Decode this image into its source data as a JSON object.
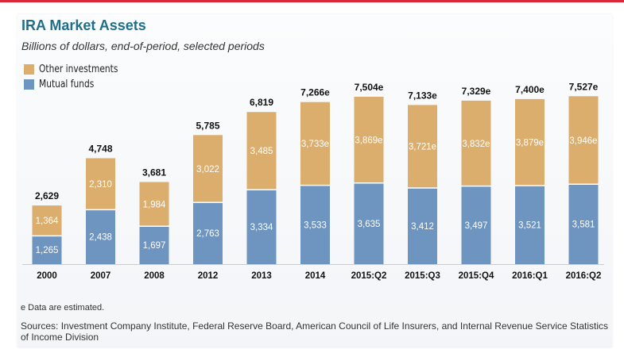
{
  "title": "IRA Market Assets",
  "subtitle": "Billions of dollars, end-of-period, selected periods",
  "legend": [
    {
      "label": "Other investments",
      "color": "#dcae6e"
    },
    {
      "label": "Mutual funds",
      "color": "#6e94c0"
    }
  ],
  "colors": {
    "accent": "#1f6f8b",
    "topbar": "#d8283a"
  },
  "footnote": "e Data are estimated.",
  "sources": "Sources: Investment Company Institute, Federal Reserve Board, American Council of Life Insurers, and Internal Revenue Service Statistics of Income Division",
  "chart_data": {
    "type": "bar",
    "stacked": true,
    "title": "IRA Market Assets",
    "subtitle": "Billions of dollars, end-of-period, selected periods",
    "categories": [
      "2000",
      "2007",
      "2008",
      "2012",
      "2013",
      "2014",
      "2015:Q2",
      "2015:Q3",
      "2015:Q4",
      "2016:Q1",
      "2016:Q2"
    ],
    "series": [
      {
        "name": "Mutual funds",
        "color": "#6e94c0",
        "values": [
          1265,
          2438,
          1697,
          2763,
          3334,
          3533,
          3635,
          3412,
          3497,
          3521,
          3581
        ],
        "labels": [
          "1,265",
          "2,438",
          "1,697",
          "2,763",
          "3,334",
          "3,533",
          "3,635",
          "3,412",
          "3,497",
          "3,521",
          "3,581"
        ]
      },
      {
        "name": "Other investments",
        "color": "#dcae6e",
        "values": [
          1364,
          2310,
          1984,
          3022,
          3485,
          3733,
          3869,
          3721,
          3832,
          3879,
          3946
        ],
        "labels": [
          "1,364",
          "2,310",
          "1,984",
          "3,022",
          "3,485",
          "3,733e",
          "3,869e",
          "3,721e",
          "3,832e",
          "3,879e",
          "3,946e"
        ]
      }
    ],
    "totals": [
      2629,
      4748,
      3681,
      5785,
      6819,
      7266,
      7504,
      7133,
      7329,
      7400,
      7527
    ],
    "total_labels": [
      "2,629",
      "4,748",
      "3,681",
      "5,785",
      "6,819",
      "7,266e",
      "7,504e",
      "7,133e",
      "7,329e",
      "7,400e",
      "7,527e"
    ],
    "ylim": [
      0,
      8000
    ],
    "grid": false,
    "legend_position": "top-left",
    "xlabel": "",
    "ylabel": ""
  }
}
